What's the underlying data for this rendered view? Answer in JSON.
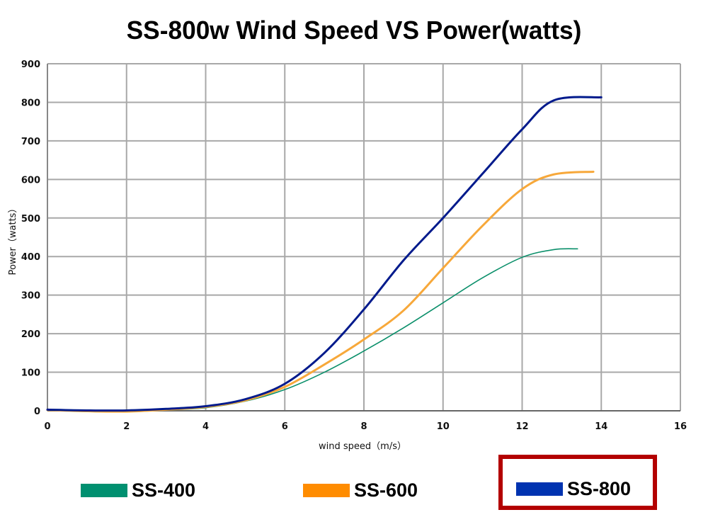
{
  "chart_data": {
    "type": "line",
    "title": "SS-800w Wind Speed VS Power(watts)",
    "xlabel": "wind speed（m/s）",
    "ylabel": "Power（watts）",
    "xlim": [
      0,
      16
    ],
    "ylim": [
      0,
      900
    ],
    "xticks": [
      0,
      2,
      4,
      6,
      8,
      10,
      12,
      14,
      16
    ],
    "yticks": [
      0,
      100,
      200,
      300,
      400,
      500,
      600,
      700,
      800,
      900
    ],
    "grid": true,
    "legend_position": "bottom",
    "series": [
      {
        "name": "SS-400",
        "color": "#0a8f6a",
        "x": [
          0,
          1,
          2,
          3,
          4,
          5,
          6,
          7,
          8,
          9,
          10,
          11,
          12,
          12.8,
          13.4
        ],
        "y": [
          2,
          -2,
          -3,
          2,
          8,
          25,
          55,
          100,
          155,
          215,
          280,
          345,
          398,
          418,
          420
        ]
      },
      {
        "name": "SS-600",
        "color": "#f7a83a",
        "x": [
          0,
          1,
          2,
          3,
          4,
          5,
          6,
          7,
          8,
          9,
          10,
          11,
          12,
          12.8,
          13.8
        ],
        "y": [
          2,
          -1,
          -2,
          3,
          10,
          27,
          62,
          120,
          185,
          260,
          370,
          480,
          575,
          613,
          620
        ]
      },
      {
        "name": "SS-800",
        "color": "#001a8c",
        "x": [
          0,
          1,
          2,
          3,
          4,
          5,
          6,
          7,
          8,
          9,
          10,
          11,
          12,
          12.8,
          14
        ],
        "y": [
          3,
          1,
          1,
          5,
          12,
          30,
          70,
          150,
          263,
          390,
          500,
          615,
          730,
          805,
          813
        ]
      }
    ]
  },
  "legend": {
    "items": [
      {
        "label": "SS-400",
        "color": "#009070"
      },
      {
        "label": "SS-600",
        "color": "#ff8c00"
      },
      {
        "label": "SS-800",
        "color": "#0033b0"
      }
    ],
    "highlighted": "SS-800",
    "highlight_color": "#b30000"
  }
}
